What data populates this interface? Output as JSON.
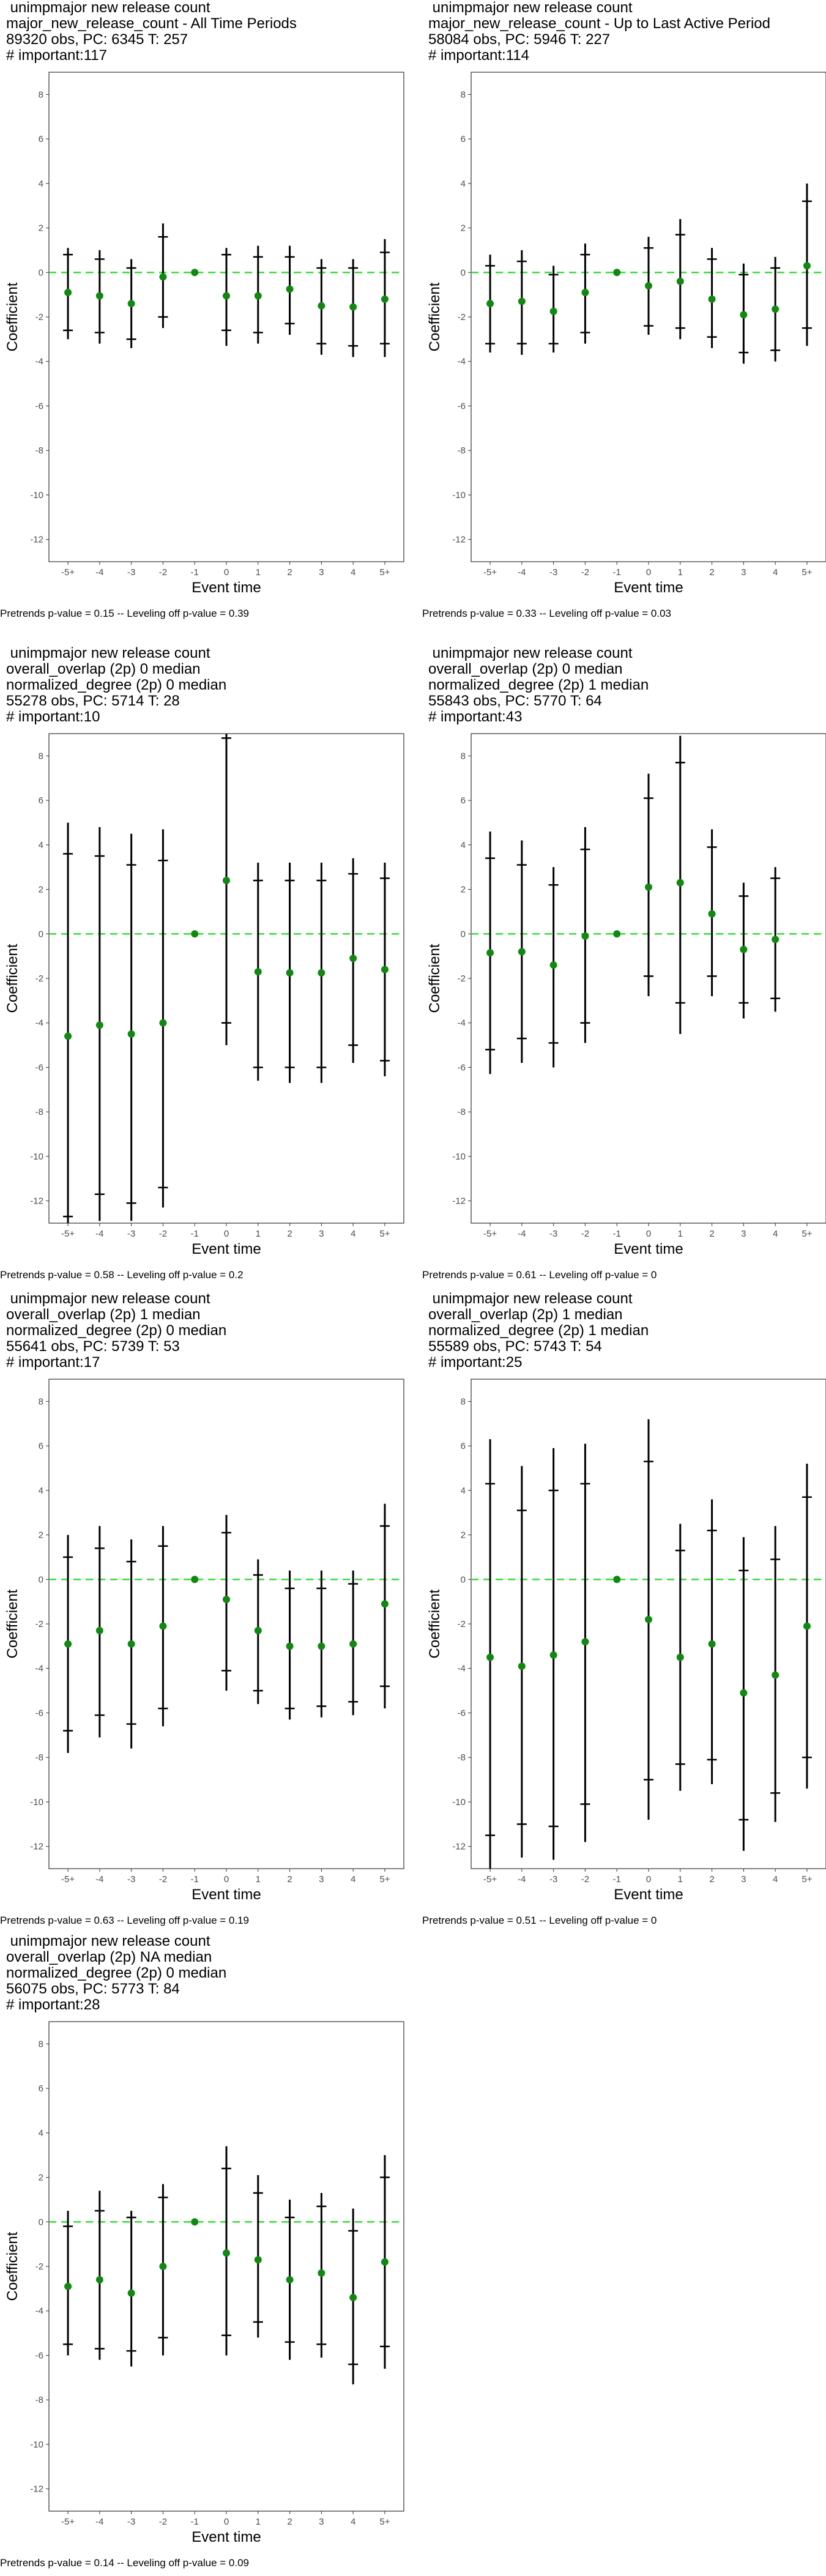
{
  "chart_data": [
    {
      "type": "scatter",
      "title_lines": [
        " unimpmajor new release count",
        "major_new_release_count - All Time Periods",
        "89320 obs, PC: 6345 T: 257",
        "# important:117"
      ],
      "xlabel": "Event time",
      "ylabel": "Coefficient",
      "categories": [
        "-5+",
        "-4",
        "-3",
        "-2",
        "-1",
        "0",
        "1",
        "2",
        "3",
        "4",
        "5+"
      ],
      "ylim": [
        -13,
        9
      ],
      "yticks": [
        8,
        6,
        4,
        2,
        0,
        -2,
        -4,
        -6,
        -8,
        -10,
        -12
      ],
      "reference_line": 0,
      "reference_category": "-1",
      "values": [
        -0.9,
        -1.05,
        -1.4,
        -0.2,
        0,
        -1.05,
        -1.05,
        -0.75,
        -1.5,
        -1.55,
        -1.2
      ],
      "ci_outer_low": [
        -3.0,
        -3.2,
        -3.4,
        -2.5,
        0,
        -3.3,
        -3.2,
        -2.8,
        -3.7,
        -3.8,
        -3.8
      ],
      "ci_outer_high": [
        1.1,
        1.0,
        0.6,
        2.2,
        0,
        1.1,
        1.2,
        1.2,
        0.6,
        0.6,
        1.5
      ],
      "ci_inner_low": [
        -2.6,
        -2.7,
        -3.0,
        -2.0,
        0,
        -2.6,
        -2.7,
        -2.3,
        -3.2,
        -3.3,
        -3.2
      ],
      "ci_inner_high": [
        0.8,
        0.6,
        0.2,
        1.6,
        0,
        0.8,
        0.7,
        0.7,
        0.2,
        0.2,
        0.9
      ],
      "footnote": "Pretrends p-value = 0.15 -- Leveling off p-value = 0.39"
    },
    {
      "type": "scatter",
      "title_lines": [
        " unimpmajor new release count",
        "major_new_release_count - Up to Last Active Period",
        "58084 obs, PC: 5946 T: 227",
        "# important:114"
      ],
      "xlabel": "Event time",
      "ylabel": "Coefficient",
      "categories": [
        "-5+",
        "-4",
        "-3",
        "-2",
        "-1",
        "0",
        "1",
        "2",
        "3",
        "4",
        "5+"
      ],
      "ylim": [
        -13,
        9
      ],
      "yticks": [
        8,
        6,
        4,
        2,
        0,
        -2,
        -4,
        -6,
        -8,
        -10,
        -12
      ],
      "reference_line": 0,
      "reference_category": "-1",
      "values": [
        -1.4,
        -1.3,
        -1.75,
        -0.9,
        0,
        -0.6,
        -0.4,
        -1.2,
        -1.9,
        -1.65,
        0.3
      ],
      "ci_outer_low": [
        -3.6,
        -3.7,
        -3.6,
        -3.2,
        0,
        -2.8,
        -3.0,
        -3.4,
        -4.1,
        -4.0,
        -3.3
      ],
      "ci_outer_high": [
        0.8,
        1.0,
        0.3,
        1.3,
        0,
        1.6,
        2.4,
        1.1,
        0.4,
        0.7,
        4.0
      ],
      "ci_inner_low": [
        -3.2,
        -3.2,
        -3.2,
        -2.7,
        0,
        -2.4,
        -2.5,
        -2.9,
        -3.6,
        -3.5,
        -2.5
      ],
      "ci_inner_high": [
        0.3,
        0.5,
        -0.1,
        0.8,
        0,
        1.1,
        1.7,
        0.6,
        -0.1,
        0.2,
        3.2
      ],
      "footnote": "Pretrends p-value = 0.33 -- Leveling off p-value = 0.03"
    },
    {
      "type": "scatter",
      "title_lines": [
        " unimpmajor new release count",
        "overall_overlap (2p) 0 median",
        "normalized_degree (2p) 0 median",
        "55278 obs, PC: 5714 T: 28",
        "# important:10"
      ],
      "xlabel": "Event time",
      "ylabel": "Coefficient",
      "categories": [
        "-5+",
        "-4",
        "-3",
        "-2",
        "-1",
        "0",
        "1",
        "2",
        "3",
        "4",
        "5+"
      ],
      "ylim": [
        -13,
        9
      ],
      "yticks": [
        8,
        6,
        4,
        2,
        0,
        -2,
        -4,
        -6,
        -8,
        -10,
        -12
      ],
      "reference_line": 0,
      "reference_category": "-1",
      "values": [
        -4.6,
        -4.1,
        -4.5,
        -4.0,
        0,
        2.4,
        -1.7,
        -1.75,
        -1.75,
        -1.1,
        -1.6
      ],
      "ci_outer_low": [
        -13.0,
        -12.9,
        -12.9,
        -12.3,
        0,
        -5.0,
        -6.6,
        -6.7,
        -6.7,
        -5.8,
        -6.4
      ],
      "ci_outer_high": [
        5.0,
        4.8,
        4.5,
        4.7,
        0,
        9.0,
        3.2,
        3.2,
        3.2,
        3.4,
        3.2
      ],
      "ci_inner_low": [
        -12.7,
        -11.7,
        -12.1,
        -11.4,
        0,
        -4.0,
        -6.0,
        -6.0,
        -6.0,
        -5.0,
        -5.7
      ],
      "ci_inner_high": [
        3.6,
        3.5,
        3.1,
        3.3,
        0,
        8.8,
        2.4,
        2.4,
        2.4,
        2.7,
        2.5
      ],
      "footnote": "Pretrends p-value = 0.58 -- Leveling off p-value = 0.2"
    },
    {
      "type": "scatter",
      "title_lines": [
        " unimpmajor new release count",
        "overall_overlap (2p) 0 median",
        "normalized_degree (2p) 1 median",
        "55843 obs, PC: 5770 T: 64",
        "# important:43"
      ],
      "xlabel": "Event time",
      "ylabel": "Coefficient",
      "categories": [
        "-5+",
        "-4",
        "-3",
        "-2",
        "-1",
        "0",
        "1",
        "2",
        "3",
        "4",
        "5+"
      ],
      "ylim": [
        -13,
        9
      ],
      "yticks": [
        8,
        6,
        4,
        2,
        0,
        -2,
        -4,
        -6,
        -8,
        -10,
        -12
      ],
      "reference_line": 0,
      "reference_category": "-1",
      "values": [
        -0.85,
        -0.8,
        -1.4,
        -0.1,
        0,
        2.1,
        2.3,
        0.9,
        -0.7,
        -0.25,
        null
      ],
      "ci_outer_low": [
        -6.3,
        -5.8,
        -6.0,
        -4.9,
        0,
        -2.8,
        -4.5,
        -2.8,
        -3.8,
        -3.5,
        null
      ],
      "ci_outer_high": [
        4.6,
        4.2,
        3.0,
        4.8,
        0,
        7.2,
        8.9,
        4.7,
        2.3,
        3.0,
        null
      ],
      "ci_inner_low": [
        -5.2,
        -4.7,
        -4.9,
        -4.0,
        0,
        -1.9,
        -3.1,
        -1.9,
        -3.1,
        -2.9,
        null
      ],
      "ci_inner_high": [
        3.4,
        3.1,
        2.2,
        3.8,
        0,
        6.1,
        7.7,
        3.9,
        1.7,
        2.5,
        null
      ],
      "footnote": "Pretrends p-value = 0.61 -- Leveling off p-value = 0"
    },
    {
      "type": "scatter",
      "title_lines": [
        " unimpmajor new release count",
        "overall_overlap (2p) 1 median",
        "normalized_degree (2p) 0 median",
        "55641 obs, PC: 5739 T: 53",
        "# important:17"
      ],
      "xlabel": "Event time",
      "ylabel": "Coefficient",
      "categories": [
        "-5+",
        "-4",
        "-3",
        "-2",
        "-1",
        "0",
        "1",
        "2",
        "3",
        "4",
        "5+"
      ],
      "ylim": [
        -13,
        9
      ],
      "yticks": [
        8,
        6,
        4,
        2,
        0,
        -2,
        -4,
        -6,
        -8,
        -10,
        -12
      ],
      "reference_line": 0,
      "reference_category": "-1",
      "values": [
        -2.9,
        -2.3,
        -2.9,
        -2.1,
        0,
        -0.9,
        -2.3,
        -3.0,
        -3.0,
        -2.9,
        -1.1
      ],
      "ci_outer_low": [
        -7.8,
        -7.1,
        -7.6,
        -6.6,
        0,
        -5.0,
        -5.6,
        -6.3,
        -6.2,
        -6.1,
        -5.8
      ],
      "ci_outer_high": [
        2.0,
        2.4,
        1.8,
        2.4,
        0,
        2.9,
        0.9,
        0.4,
        0.4,
        0.4,
        3.4
      ],
      "ci_inner_low": [
        -6.8,
        -6.1,
        -6.5,
        -5.8,
        0,
        -4.1,
        -5.0,
        -5.8,
        -5.7,
        -5.5,
        -4.8
      ],
      "ci_inner_high": [
        1.0,
        1.4,
        0.8,
        1.5,
        0,
        2.1,
        0.2,
        -0.4,
        -0.4,
        -0.2,
        2.4
      ],
      "footnote": "Pretrends p-value = 0.63 -- Leveling off p-value = 0.19"
    },
    {
      "type": "scatter",
      "title_lines": [
        " unimpmajor new release count",
        "overall_overlap (2p) 1 median",
        "normalized_degree (2p) 1 median",
        "55589 obs, PC: 5743 T: 54",
        "# important:25"
      ],
      "xlabel": "Event time",
      "ylabel": "Coefficient",
      "categories": [
        "-5+",
        "-4",
        "-3",
        "-2",
        "-1",
        "0",
        "1",
        "2",
        "3",
        "4",
        "5+"
      ],
      "ylim": [
        -13,
        9
      ],
      "yticks": [
        8,
        6,
        4,
        2,
        0,
        -2,
        -4,
        -6,
        -8,
        -10,
        -12
      ],
      "reference_line": 0,
      "reference_category": "-1",
      "values": [
        -3.5,
        -3.9,
        -3.4,
        -2.8,
        0,
        -1.8,
        -3.5,
        -2.9,
        -5.1,
        -4.3,
        -2.1
      ],
      "ci_outer_low": [
        -13.0,
        -12.5,
        -12.6,
        -11.8,
        0,
        -10.8,
        -9.5,
        -9.2,
        -12.2,
        -10.9,
        -9.4
      ],
      "ci_outer_high": [
        6.3,
        5.1,
        5.9,
        6.1,
        0,
        7.2,
        2.5,
        3.6,
        1.9,
        2.4,
        5.2
      ],
      "ci_inner_low": [
        -11.5,
        -11.0,
        -11.1,
        -10.1,
        0,
        -9.0,
        -8.3,
        -8.1,
        -10.8,
        -9.6,
        -8.0
      ],
      "ci_inner_high": [
        4.3,
        3.1,
        4.0,
        4.3,
        0,
        5.3,
        1.3,
        2.2,
        0.4,
        0.9,
        3.7
      ],
      "footnote": "Pretrends p-value = 0.51 -- Leveling off p-value = 0"
    },
    {
      "type": "scatter",
      "title_lines": [
        " unimpmajor new release count",
        "overall_overlap (2p) NA median",
        "normalized_degree (2p) 0 median",
        "56075 obs, PC: 5773 T: 84",
        "# important:28"
      ],
      "xlabel": "Event time",
      "ylabel": "Coefficient",
      "categories": [
        "-5+",
        "-4",
        "-3",
        "-2",
        "-1",
        "0",
        "1",
        "2",
        "3",
        "4",
        "5+"
      ],
      "ylim": [
        -13,
        9
      ],
      "yticks": [
        8,
        6,
        4,
        2,
        0,
        -2,
        -4,
        -6,
        -8,
        -10,
        -12
      ],
      "reference_line": 0,
      "reference_category": "-1",
      "values": [
        -2.9,
        -2.6,
        -3.2,
        -2.0,
        0,
        -1.4,
        -1.7,
        -2.6,
        -2.3,
        -3.4,
        -1.8
      ],
      "ci_outer_low": [
        -6.0,
        -6.2,
        -6.5,
        -6.0,
        0,
        -6.0,
        -5.2,
        -6.2,
        -6.1,
        -7.3,
        -6.6
      ],
      "ci_outer_high": [
        0.5,
        1.4,
        0.5,
        1.7,
        0,
        3.4,
        2.1,
        1.0,
        1.3,
        0.6,
        3.0
      ],
      "ci_inner_low": [
        -5.5,
        -5.7,
        -5.8,
        -5.2,
        0,
        -5.1,
        -4.5,
        -5.4,
        -5.5,
        -6.4,
        -5.6
      ],
      "ci_inner_high": [
        -0.2,
        0.5,
        0.2,
        1.1,
        0,
        2.4,
        1.3,
        0.2,
        0.7,
        -0.4,
        2.0
      ],
      "footnote": "Pretrends p-value = 0.14 -- Leveling off p-value = 0.09"
    }
  ]
}
